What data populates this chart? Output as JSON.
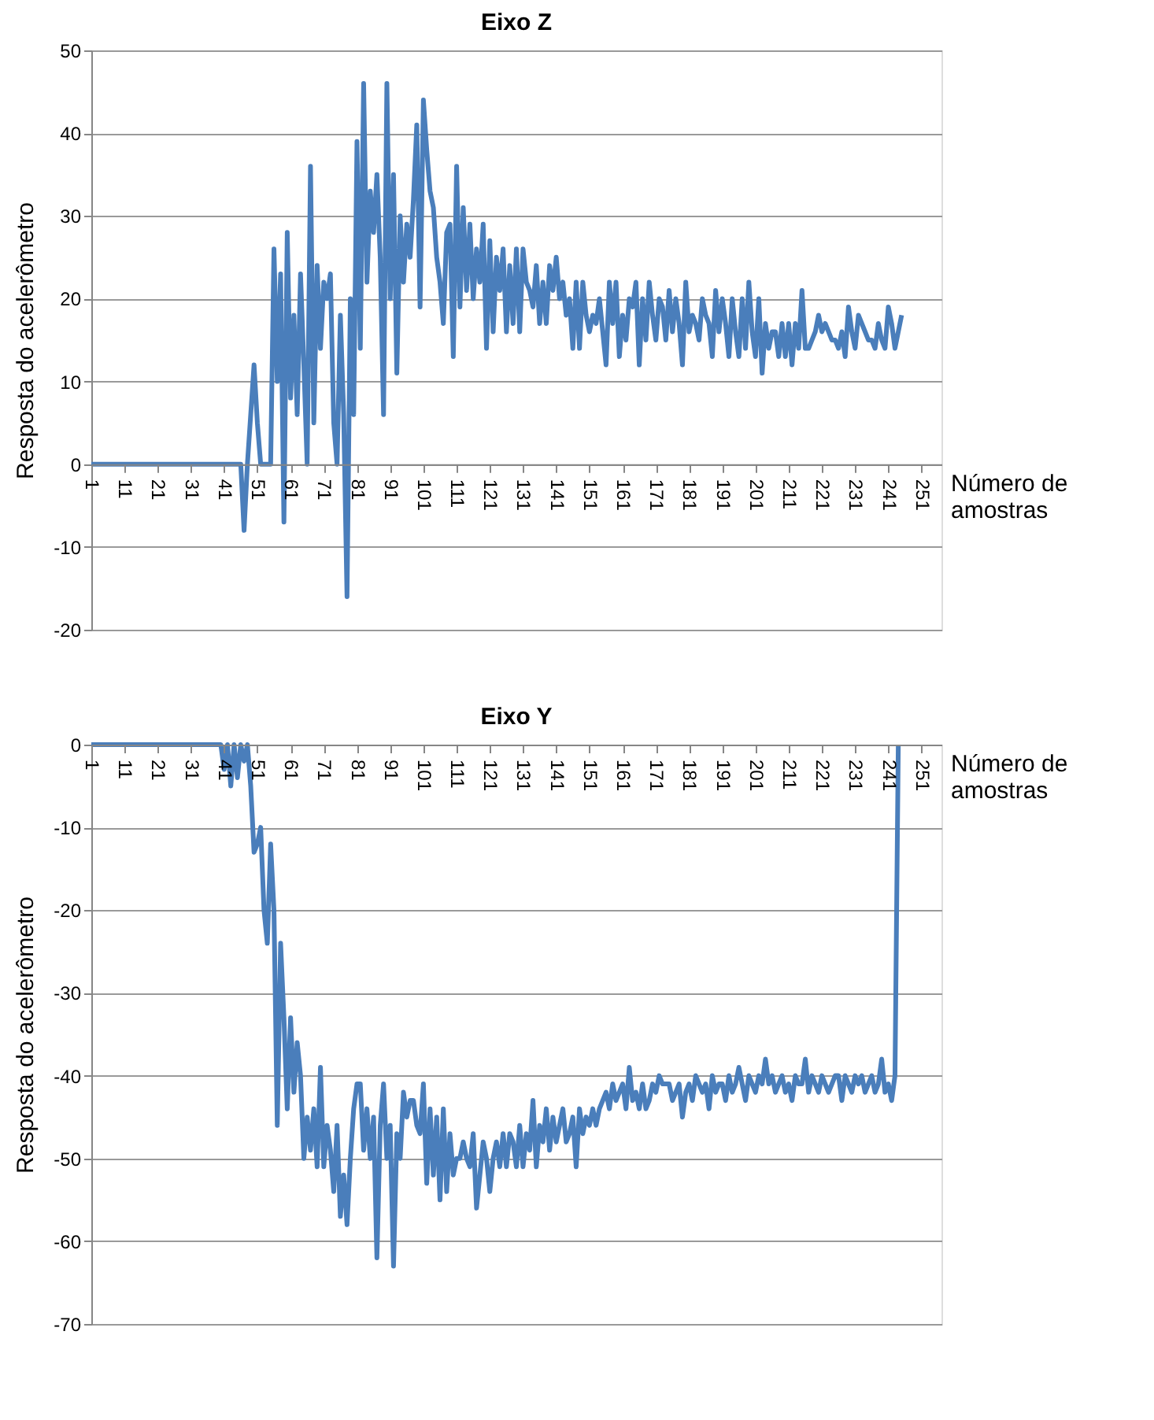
{
  "chart_data": [
    {
      "type": "line",
      "title": "Eixo Z",
      "xlabel": "Número de amostras",
      "ylabel": "Resposta do acelerômetro",
      "x": [
        1,
        46,
        47,
        48,
        49,
        50,
        51,
        52,
        53,
        54,
        55,
        56,
        57,
        58,
        59,
        60,
        61,
        62,
        63,
        64,
        65,
        66,
        67,
        68,
        69,
        70,
        71,
        72,
        73,
        74,
        75,
        76,
        77,
        78,
        79,
        80,
        81,
        82,
        83,
        84,
        85,
        86,
        87,
        88,
        89,
        90,
        91,
        92,
        93,
        94,
        95,
        96,
        97,
        98,
        99,
        100,
        101,
        102,
        103,
        104,
        105,
        106,
        107,
        108,
        109,
        110,
        111,
        112,
        113,
        114,
        115,
        116,
        117,
        118,
        119,
        120,
        121,
        122,
        123,
        124,
        125,
        126,
        127,
        128,
        129,
        130,
        131,
        132,
        133,
        134,
        135,
        136,
        137,
        138,
        139,
        140,
        141,
        142,
        143,
        144,
        145,
        146,
        147,
        148,
        149,
        150,
        151,
        152,
        153,
        154,
        155,
        156,
        157,
        158,
        159,
        160,
        161,
        162,
        163,
        164,
        165,
        166,
        167,
        168,
        169,
        170,
        171,
        172,
        173,
        174,
        175,
        176,
        177,
        178,
        179,
        180,
        181,
        182,
        183,
        184,
        185,
        186,
        187,
        188,
        189,
        190,
        191,
        192,
        193,
        194,
        195,
        196,
        197,
        198,
        199,
        200,
        201,
        202,
        203,
        204,
        205,
        206,
        207,
        208,
        209,
        210,
        211,
        212,
        213,
        214,
        215,
        216,
        217,
        218,
        219,
        220,
        221,
        222,
        223,
        224,
        225,
        226,
        227,
        228,
        229,
        230,
        231,
        232,
        233,
        234,
        235,
        236,
        237,
        238,
        239,
        240,
        241,
        242,
        243,
        244,
        245
      ],
      "series": [
        {
          "color": "#4a7ebb",
          "values": [
            0,
            0,
            -8,
            0,
            6,
            12,
            5,
            0,
            0,
            0,
            0,
            26,
            10,
            23,
            -7,
            28,
            8,
            18,
            6,
            23,
            12,
            0,
            36,
            5,
            24,
            14,
            22,
            20,
            23,
            5,
            0,
            18,
            6,
            -16,
            20,
            6,
            39,
            14,
            46,
            22,
            33,
            28,
            35,
            25,
            6,
            46,
            20,
            35,
            11,
            30,
            22,
            29,
            25,
            32,
            41,
            19,
            44,
            38,
            33,
            31,
            25,
            22,
            17,
            28,
            29,
            13,
            36,
            19,
            31,
            21,
            29,
            20,
            26,
            22,
            29,
            14,
            27,
            16,
            25,
            21,
            26,
            16,
            24,
            17,
            26,
            16,
            26,
            22,
            21,
            19,
            24,
            17,
            22,
            17,
            24,
            21,
            25,
            20,
            22,
            18,
            20,
            14,
            22,
            14,
            22,
            18,
            16,
            18,
            17,
            20,
            16,
            12,
            22,
            17,
            22,
            13,
            18,
            15,
            20,
            19,
            22,
            12,
            20,
            15,
            22,
            18,
            15,
            20,
            19,
            15,
            21,
            16,
            20,
            17,
            12,
            22,
            16,
            18,
            17,
            15,
            20,
            18,
            17,
            13,
            21,
            16,
            20,
            17,
            13,
            20,
            16,
            13,
            20,
            14,
            22,
            16,
            13,
            20,
            11,
            17,
            14,
            16,
            16,
            13,
            17,
            13,
            17,
            12,
            17,
            14,
            21,
            14,
            14,
            15,
            16,
            18,
            16,
            17,
            16,
            15,
            15,
            14,
            16,
            13,
            19,
            16,
            14,
            18,
            17,
            16,
            15,
            15,
            14,
            17,
            15,
            14,
            19,
            17,
            14,
            16,
            18
          ]
        }
      ],
      "xlim": [
        1,
        257
      ],
      "xticks": [
        1,
        11,
        21,
        31,
        41,
        51,
        61,
        71,
        81,
        91,
        101,
        111,
        121,
        131,
        141,
        151,
        161,
        171,
        181,
        191,
        201,
        211,
        221,
        231,
        241,
        251
      ],
      "ylim": [
        -20,
        50
      ],
      "yticks": [
        -20,
        -10,
        0,
        10,
        20,
        30,
        40,
        50
      ],
      "grid": "y"
    },
    {
      "type": "line",
      "title": "Eixo Y",
      "xlabel": "Número de amostras",
      "ylabel": "Resposta do acelerômetro",
      "x": [
        1,
        40,
        41,
        42,
        43,
        44,
        45,
        46,
        47,
        48,
        49,
        50,
        51,
        52,
        53,
        54,
        55,
        56,
        57,
        58,
        59,
        60,
        61,
        62,
        63,
        64,
        65,
        66,
        67,
        68,
        69,
        70,
        71,
        72,
        73,
        74,
        75,
        76,
        77,
        78,
        79,
        80,
        81,
        82,
        83,
        84,
        85,
        86,
        87,
        88,
        89,
        90,
        91,
        92,
        93,
        94,
        95,
        96,
        97,
        98,
        99,
        100,
        101,
        102,
        103,
        104,
        105,
        106,
        107,
        108,
        109,
        110,
        111,
        112,
        113,
        114,
        115,
        116,
        117,
        118,
        119,
        120,
        121,
        122,
        123,
        124,
        125,
        126,
        127,
        128,
        129,
        130,
        131,
        132,
        133,
        134,
        135,
        136,
        137,
        138,
        139,
        140,
        141,
        142,
        143,
        144,
        145,
        146,
        147,
        148,
        149,
        150,
        151,
        152,
        153,
        154,
        155,
        156,
        157,
        158,
        159,
        160,
        161,
        162,
        163,
        164,
        165,
        166,
        167,
        168,
        169,
        170,
        171,
        172,
        173,
        174,
        175,
        176,
        177,
        178,
        179,
        180,
        181,
        182,
        183,
        184,
        185,
        186,
        187,
        188,
        189,
        190,
        191,
        192,
        193,
        194,
        195,
        196,
        197,
        198,
        199,
        200,
        201,
        202,
        203,
        204,
        205,
        206,
        207,
        208,
        209,
        210,
        211,
        212,
        213,
        214,
        215,
        216,
        217,
        218,
        219,
        220,
        221,
        222,
        223,
        224,
        225,
        226,
        227,
        228,
        229,
        230,
        231,
        232,
        233,
        234,
        235,
        236,
        237,
        238,
        239,
        240,
        241,
        242,
        243,
        244
      ],
      "series": [
        {
          "color": "#4a7ebb",
          "values": [
            0,
            0,
            -3,
            0,
            -5,
            0,
            -4,
            0,
            -2,
            0,
            -5,
            -13,
            -12,
            -10,
            -20,
            -24,
            -12,
            -20,
            -46,
            -24,
            -33,
            -44,
            -33,
            -42,
            -36,
            -40,
            -50,
            -45,
            -49,
            -44,
            -51,
            -39,
            -51,
            -46,
            -49,
            -54,
            -46,
            -57,
            -52,
            -58,
            -50,
            -44,
            -41,
            -41,
            -49,
            -44,
            -50,
            -45,
            -62,
            -46,
            -41,
            -50,
            -46,
            -63,
            -47,
            -50,
            -42,
            -45,
            -43,
            -43,
            -46,
            -47,
            -41,
            -53,
            -44,
            -52,
            -45,
            -55,
            -44,
            -54,
            -47,
            -52,
            -50,
            -50,
            -48,
            -50,
            -51,
            -47,
            -56,
            -52,
            -48,
            -50,
            -54,
            -50,
            -48,
            -51,
            -47,
            -51,
            -47,
            -48,
            -51,
            -46,
            -51,
            -47,
            -49,
            -43,
            -51,
            -46,
            -48,
            -44,
            -49,
            -45,
            -48,
            -46,
            -44,
            -48,
            -47,
            -45,
            -51,
            -44,
            -47,
            -45,
            -46,
            -44,
            -46,
            -44,
            -43,
            -42,
            -44,
            -41,
            -43,
            -42,
            -41,
            -44,
            -39,
            -43,
            -42,
            -44,
            -41,
            -44,
            -43,
            -41,
            -42,
            -40,
            -41,
            -41,
            -41,
            -43,
            -42,
            -41,
            -45,
            -42,
            -41,
            -43,
            -40,
            -41,
            -42,
            -41,
            -44,
            -40,
            -42,
            -41,
            -41,
            -43,
            -40,
            -42,
            -41,
            -39,
            -41,
            -43,
            -40,
            -41,
            -42,
            -40,
            -41,
            -38,
            -41,
            -40,
            -42,
            -41,
            -40,
            -42,
            -41,
            -43,
            -40,
            -41,
            -41,
            -38,
            -42,
            -40,
            -41,
            -42,
            -40,
            -41,
            -42,
            -41,
            -40,
            -40,
            -43,
            -40,
            -41,
            -42,
            -40,
            -41,
            -40,
            -42,
            -41,
            -40,
            -42,
            -41,
            -38,
            -42,
            -41,
            -43,
            -40,
            0
          ]
        }
      ],
      "xlim": [
        1,
        257
      ],
      "xticks": [
        1,
        11,
        21,
        31,
        41,
        51,
        61,
        71,
        81,
        91,
        101,
        111,
        121,
        131,
        141,
        151,
        161,
        171,
        181,
        191,
        201,
        211,
        221,
        231,
        241,
        251
      ],
      "ylim": [
        -70,
        0
      ],
      "yticks": [
        -70,
        -60,
        -50,
        -40,
        -30,
        -20,
        -10,
        0
      ],
      "grid": "y"
    }
  ]
}
